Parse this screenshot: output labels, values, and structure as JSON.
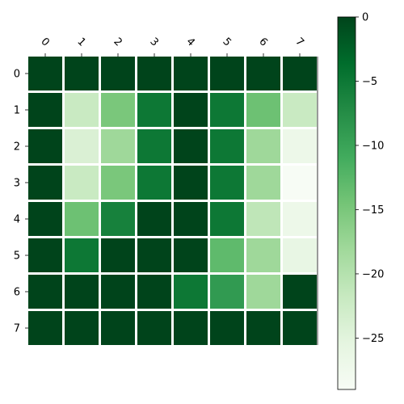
{
  "chart_data": {
    "type": "heatmap",
    "title": "",
    "xlabel": "",
    "ylabel": "",
    "x_categories": [
      "0",
      "1",
      "2",
      "3",
      "4",
      "5",
      "6",
      "7"
    ],
    "y_categories": [
      "0",
      "1",
      "2",
      "3",
      "4",
      "5",
      "6",
      "7"
    ],
    "x_tick_position": "top",
    "x_tick_rotation_deg": -45,
    "values": [
      [
        0,
        0,
        0,
        0,
        0,
        0,
        0,
        0
      ],
      [
        0,
        -22,
        -15,
        -5,
        0,
        -5,
        -14,
        -22
      ],
      [
        0,
        -24,
        -18,
        -5,
        0,
        -5,
        -18,
        -27
      ],
      [
        0,
        -22,
        -15,
        -5,
        0,
        -5,
        -18,
        -29
      ],
      [
        0,
        -14,
        -6,
        0,
        0,
        -5,
        -21,
        -27
      ],
      [
        0,
        -5,
        0,
        0,
        0,
        -13,
        -18,
        -26
      ],
      [
        0,
        0,
        0,
        0,
        -5,
        -9,
        -18,
        0
      ],
      [
        0,
        0,
        0,
        0,
        0,
        0,
        0,
        0
      ]
    ],
    "colormap": "Greens_r",
    "vmin": -29,
    "vmax": 0,
    "colorbar": {
      "ticks": [
        "0",
        "−5",
        "−10",
        "−15",
        "−20",
        "−25"
      ],
      "tick_values": [
        0,
        -5,
        -10,
        -15,
        -20,
        -25
      ],
      "position": "right"
    },
    "grid": false,
    "cell_separator_color": "#ffffff"
  }
}
